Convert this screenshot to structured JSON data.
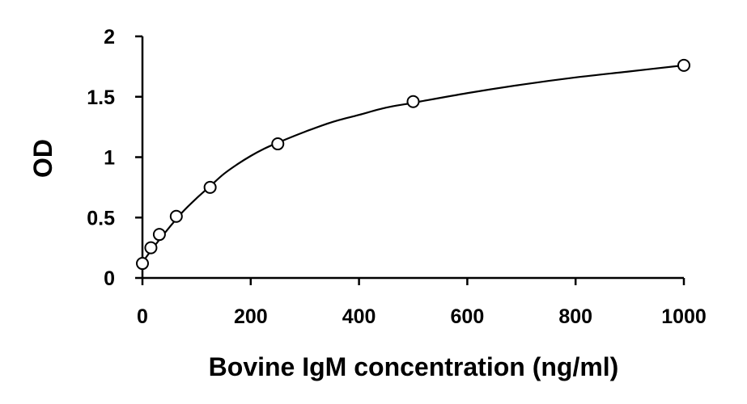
{
  "chart_data": {
    "type": "scatter",
    "title": "",
    "xlabel": "Bovine IgM concentration (ng/ml)",
    "ylabel": "OD",
    "xlim": [
      0,
      1000
    ],
    "ylim": [
      0,
      2
    ],
    "x_ticks": [
      0,
      200,
      400,
      600,
      800,
      1000
    ],
    "y_ticks": [
      0,
      0.5,
      1,
      1.5,
      2
    ],
    "x_tick_labels": [
      "0",
      "200",
      "400",
      "600",
      "800",
      "1000"
    ],
    "y_tick_labels": [
      "0",
      "0.5",
      "1",
      "1.5",
      "2"
    ],
    "grid": false,
    "legend": "none",
    "marker": "open-circle",
    "color": "#000000",
    "series": [
      {
        "points": [
          {
            "x": 0,
            "y": 0.12
          },
          {
            "x": 15.6,
            "y": 0.25
          },
          {
            "x": 31.25,
            "y": 0.36
          },
          {
            "x": 62.5,
            "y": 0.51
          },
          {
            "x": 125,
            "y": 0.75
          },
          {
            "x": 250,
            "y": 1.11
          },
          {
            "x": 500,
            "y": 1.46
          },
          {
            "x": 1000,
            "y": 1.76
          }
        ]
      }
    ],
    "fit_curve": {
      "type": "4PL",
      "points": [
        {
          "x": 0,
          "y": 0.13
        },
        {
          "x": 25,
          "y": 0.28
        },
        {
          "x": 50,
          "y": 0.42
        },
        {
          "x": 75,
          "y": 0.55
        },
        {
          "x": 100,
          "y": 0.66
        },
        {
          "x": 125,
          "y": 0.76
        },
        {
          "x": 150,
          "y": 0.86
        },
        {
          "x": 175,
          "y": 0.94
        },
        {
          "x": 200,
          "y": 1.01
        },
        {
          "x": 225,
          "y": 1.07
        },
        {
          "x": 250,
          "y": 1.12
        },
        {
          "x": 300,
          "y": 1.21
        },
        {
          "x": 350,
          "y": 1.29
        },
        {
          "x": 400,
          "y": 1.35
        },
        {
          "x": 450,
          "y": 1.41
        },
        {
          "x": 500,
          "y": 1.45
        },
        {
          "x": 600,
          "y": 1.53
        },
        {
          "x": 700,
          "y": 1.6
        },
        {
          "x": 800,
          "y": 1.66
        },
        {
          "x": 900,
          "y": 1.71
        },
        {
          "x": 1000,
          "y": 1.76
        }
      ]
    }
  }
}
